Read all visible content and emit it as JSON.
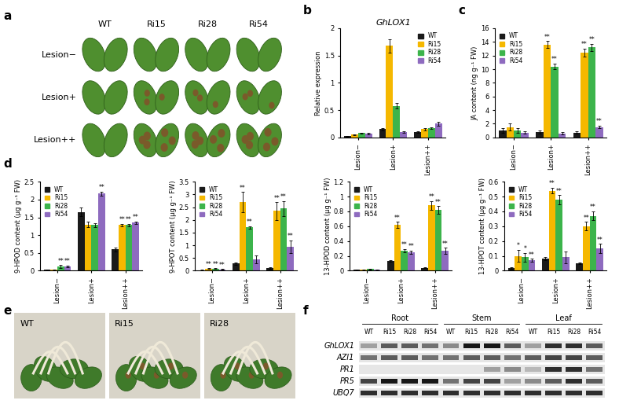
{
  "panels": {
    "a": {
      "label": "a",
      "columns": [
        "WT",
        "Ri15",
        "Ri28",
        "Ri54"
      ],
      "rows": [
        "Lesion−",
        "Lesion+",
        "Lesion++"
      ]
    },
    "e": {
      "label": "e",
      "images": [
        "WT",
        "Ri15",
        "Ri28"
      ]
    },
    "f": {
      "label": "f",
      "groups": [
        "Root",
        "Stem",
        "Leaf"
      ],
      "lanes": [
        "WT",
        "Ri15",
        "Ri28",
        "Ri54"
      ],
      "genes": [
        "GhLOX1",
        "AZI1",
        "PR1",
        "PR5",
        "UBQ7"
      ],
      "bands": [
        [
          0.3,
          0.6,
          0.6,
          0.5,
          0.4,
          0.9,
          0.9,
          0.6,
          0.3,
          0.8,
          0.8,
          0.6
        ],
        [
          0.5,
          0.6,
          0.6,
          0.5,
          0.5,
          0.6,
          0.6,
          0.5,
          0.6,
          0.7,
          0.7,
          0.6
        ],
        [
          0,
          0,
          0,
          0,
          0,
          0,
          0.3,
          0.4,
          0.2,
          0.8,
          0.8,
          0.5
        ],
        [
          0.7,
          0.9,
          0.9,
          0.9,
          0.5,
          0.7,
          0.7,
          0.3,
          0.4,
          0.6,
          0.8,
          0.6
        ],
        [
          0.8,
          0.8,
          0.8,
          0.8,
          0.8,
          0.8,
          0.8,
          0.8,
          0.8,
          0.8,
          0.8,
          0.8
        ]
      ]
    }
  },
  "chart_data": [
    {
      "type": "bar",
      "panel_label": "b",
      "title": "GhLOX1",
      "y_label": "Relative expression",
      "categories": [
        "Lesion−",
        "Lesion+",
        "Lesion++"
      ],
      "ylim": [
        0,
        2
      ],
      "yticks": [
        0,
        0.5,
        1,
        1.5,
        2
      ],
      "legend": "upper right",
      "series": [
        {
          "name": "WT",
          "color": "#1a1a1a",
          "values": [
            0.02,
            0.15,
            0.1
          ],
          "errors": [
            0.01,
            0.02,
            0.01
          ]
        },
        {
          "name": "Ri15",
          "color": "#f5b800",
          "values": [
            0.05,
            1.68,
            0.15
          ],
          "errors": [
            0.01,
            0.12,
            0.02
          ]
        },
        {
          "name": "Ri28",
          "color": "#3cb44b",
          "values": [
            0.08,
            0.58,
            0.17
          ],
          "errors": [
            0.01,
            0.05,
            0.02
          ]
        },
        {
          "name": "Ri54",
          "color": "#8e6bbf",
          "values": [
            0.07,
            0.1,
            0.25
          ],
          "errors": [
            0.01,
            0.01,
            0.04
          ]
        }
      ]
    },
    {
      "type": "bar",
      "panel_label": "c",
      "y_label": "JA content (ng g⁻¹ FW)",
      "categories": [
        "Lesion−",
        "Lesion+",
        "Lesion++"
      ],
      "ylim": [
        0,
        16
      ],
      "yticks": [
        0,
        2,
        4,
        6,
        8,
        10,
        12,
        14,
        16
      ],
      "legend": "upper left",
      "series": [
        {
          "name": "WT",
          "color": "#1a1a1a",
          "values": [
            1.0,
            0.8,
            0.7
          ],
          "errors": [
            0.3,
            0.2,
            0.2
          ],
          "significance": [
            null,
            null,
            null
          ]
        },
        {
          "name": "Ri15",
          "color": "#f5b800",
          "values": [
            1.5,
            13.6,
            12.4
          ],
          "errors": [
            0.5,
            0.5,
            0.6
          ],
          "significance": [
            null,
            "**",
            "**"
          ]
        },
        {
          "name": "Ri28",
          "color": "#3cb44b",
          "values": [
            1.0,
            10.4,
            13.2
          ],
          "errors": [
            0.3,
            0.4,
            0.5
          ],
          "significance": [
            null,
            "**",
            "**"
          ]
        },
        {
          "name": "Ri54",
          "color": "#8e6bbf",
          "values": [
            0.7,
            0.6,
            1.5
          ],
          "errors": [
            0.2,
            0.2,
            0.2
          ],
          "significance": [
            null,
            null,
            "**"
          ]
        }
      ]
    },
    {
      "type": "bar",
      "panel_label": "d",
      "y_label": "9-HPOD content (μg g⁻¹ FW)",
      "categories": [
        "Lesion−",
        "Lesion+",
        "Lesion++"
      ],
      "ylim": [
        0,
        2.5
      ],
      "yticks": [
        0,
        0.5,
        1,
        1.5,
        2,
        2.5
      ],
      "legend": "upper left",
      "series": [
        {
          "name": "WT",
          "color": "#1a1a1a",
          "values": [
            0.02,
            1.65,
            0.6
          ],
          "errors": [
            0.01,
            0.12,
            0.05
          ],
          "significance": [
            null,
            null,
            null
          ]
        },
        {
          "name": "Ri15",
          "color": "#f5b800",
          "values": [
            0.02,
            1.3,
            1.28
          ],
          "errors": [
            0.01,
            0.08,
            0.04
          ],
          "significance": [
            null,
            null,
            "**"
          ]
        },
        {
          "name": "Ri28",
          "color": "#3cb44b",
          "values": [
            0.12,
            1.28,
            1.28
          ],
          "errors": [
            0.04,
            0.06,
            0.04
          ],
          "significance": [
            "**",
            null,
            "**"
          ]
        },
        {
          "name": "Ri54",
          "color": "#8e6bbf",
          "values": [
            0.12,
            2.17,
            1.35
          ],
          "errors": [
            0.03,
            0.06,
            0.04
          ],
          "significance": [
            "**",
            "**",
            "**"
          ]
        }
      ]
    },
    {
      "type": "bar",
      "y_label": "9-HPOT content (μg g⁻¹ FW)",
      "categories": [
        "Lesion−",
        "Lesion+",
        "Lesion++"
      ],
      "ylim": [
        0,
        3.5
      ],
      "yticks": [
        0,
        0.5,
        1,
        1.5,
        2,
        2.5,
        3,
        3.5
      ],
      "legend": "upper left",
      "series": [
        {
          "name": "WT",
          "color": "#1a1a1a",
          "values": [
            0.02,
            0.28,
            0.1
          ],
          "errors": [
            0.01,
            0.05,
            0.03
          ],
          "significance": [
            null,
            null,
            null
          ]
        },
        {
          "name": "Ri15",
          "color": "#f5b800",
          "values": [
            0.08,
            2.7,
            2.35
          ],
          "errors": [
            0.02,
            0.4,
            0.35
          ],
          "significance": [
            "**",
            "**",
            "**"
          ]
        },
        {
          "name": "Ri28",
          "color": "#3cb44b",
          "values": [
            0.08,
            1.7,
            2.45
          ],
          "errors": [
            0.02,
            0.05,
            0.3
          ],
          "significance": [
            "**",
            "**",
            "**"
          ]
        },
        {
          "name": "Ri54",
          "color": "#8e6bbf",
          "values": [
            0.05,
            0.45,
            0.95
          ],
          "errors": [
            0.01,
            0.15,
            0.25
          ],
          "significance": [
            "**",
            null,
            "**"
          ]
        }
      ]
    },
    {
      "type": "bar",
      "y_label": "13-HPOD content (μg g⁻¹ FW)",
      "categories": [
        "Lesion−",
        "Lesion+",
        "Lesion++"
      ],
      "ylim": [
        0,
        1.2
      ],
      "yticks": [
        0,
        0.2,
        0.4,
        0.6,
        0.8,
        1,
        1.2
      ],
      "legend": "upper left",
      "series": [
        {
          "name": "WT",
          "color": "#1a1a1a",
          "values": [
            0.01,
            0.13,
            0.04
          ],
          "errors": [
            0.005,
            0.01,
            0.005
          ],
          "significance": [
            null,
            null,
            null
          ]
        },
        {
          "name": "Ri15",
          "color": "#f5b800",
          "values": [
            0.01,
            0.62,
            0.88
          ],
          "errors": [
            0.005,
            0.04,
            0.06
          ],
          "significance": [
            null,
            "**",
            "**"
          ]
        },
        {
          "name": "Ri28",
          "color": "#3cb44b",
          "values": [
            0.02,
            0.27,
            0.82
          ],
          "errors": [
            0.005,
            0.02,
            0.05
          ],
          "significance": [
            null,
            "**",
            "**"
          ]
        },
        {
          "name": "Ri54",
          "color": "#8e6bbf",
          "values": [
            0.01,
            0.25,
            0.27
          ],
          "errors": [
            0.005,
            0.02,
            0.04
          ],
          "significance": [
            null,
            "**",
            "**"
          ]
        }
      ]
    },
    {
      "type": "bar",
      "y_label": "13-HPOT content (μg g⁻¹ FW)",
      "categories": [
        "Lesion−",
        "Lesion+",
        "Lesion++"
      ],
      "ylim": [
        0,
        0.6
      ],
      "yticks": [
        0,
        0.1,
        0.2,
        0.3,
        0.4,
        0.5,
        0.6
      ],
      "legend": "upper left",
      "series": [
        {
          "name": "WT",
          "color": "#1a1a1a",
          "values": [
            0.02,
            0.08,
            0.05
          ],
          "errors": [
            0.005,
            0.01,
            0.005
          ],
          "significance": [
            null,
            null,
            null
          ]
        },
        {
          "name": "Ri15",
          "color": "#f5b800",
          "values": [
            0.1,
            0.54,
            0.3
          ],
          "errors": [
            0.04,
            0.02,
            0.03
          ],
          "significance": [
            "*",
            "**",
            "**"
          ]
        },
        {
          "name": "Ri28",
          "color": "#3cb44b",
          "values": [
            0.09,
            0.48,
            0.37
          ],
          "errors": [
            0.03,
            0.03,
            0.03
          ],
          "significance": [
            "*",
            "**",
            "**"
          ]
        },
        {
          "name": "Ri54",
          "color": "#8e6bbf",
          "values": [
            0.07,
            0.09,
            0.15
          ],
          "errors": [
            0.01,
            0.04,
            0.03
          ],
          "significance": [
            "**",
            null,
            "**"
          ]
        }
      ]
    }
  ]
}
